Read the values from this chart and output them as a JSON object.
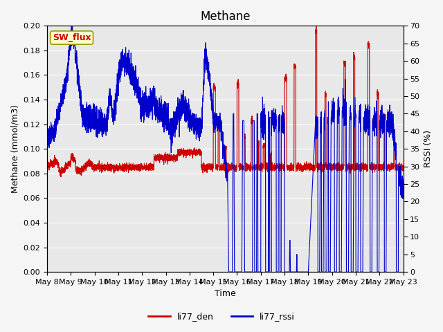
{
  "title": "Methane",
  "ylabel_left": "Methane (mmol/m3)",
  "ylabel_right": "RSSI (%)",
  "xlabel": "Time",
  "ylim_left": [
    0.0,
    0.2
  ],
  "ylim_right": [
    0,
    70
  ],
  "yticks_left": [
    0.0,
    0.02,
    0.04,
    0.06,
    0.08,
    0.1,
    0.12,
    0.14,
    0.16,
    0.18,
    0.2
  ],
  "yticks_right": [
    0,
    5,
    10,
    15,
    20,
    25,
    30,
    35,
    40,
    45,
    50,
    55,
    60,
    65,
    70
  ],
  "color_den": "#cc0000",
  "color_rssi": "#0000cc",
  "legend_labels": [
    "li77_den",
    "li77_rssi"
  ],
  "sw_flux_label": "SW_flux",
  "sw_flux_bg": "#ffffcc",
  "sw_flux_border": "#999900",
  "sw_flux_text_color": "#cc0000",
  "bg_color": "#e8e8e8",
  "grid_color": "#ffffff",
  "title_fontsize": 12,
  "axis_fontsize": 9,
  "tick_fontsize": 8,
  "xticklabels": [
    "May 8",
    "May 9",
    "May 10",
    "May 11",
    "May 12",
    "May 13",
    "May 14",
    "May 15",
    "May 16",
    "May 17",
    "May 18",
    "May 19",
    "May 20",
    "May 21",
    "May 22",
    "May 23"
  ],
  "num_days": 16
}
